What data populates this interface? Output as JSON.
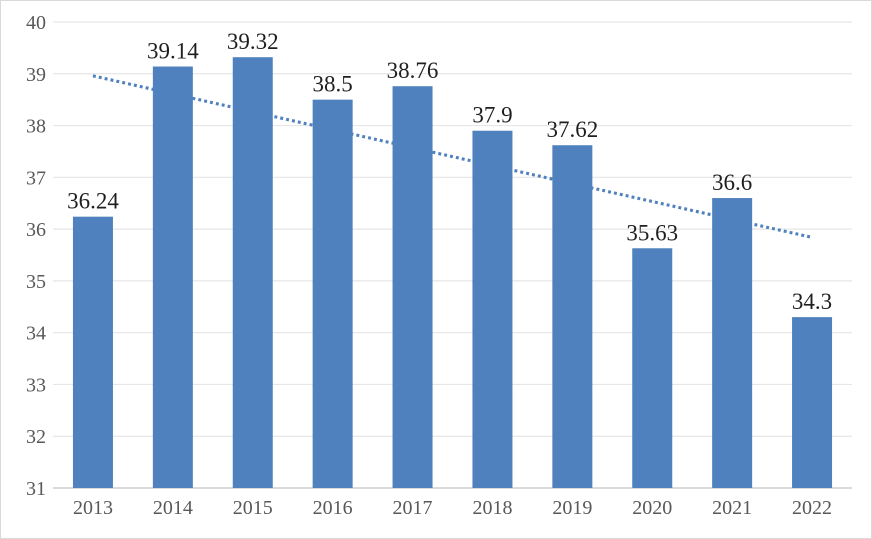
{
  "chart_data": {
    "type": "bar",
    "title": "",
    "xlabel": "",
    "ylabel": "",
    "categories": [
      "2013",
      "2014",
      "2015",
      "2016",
      "2017",
      "2018",
      "2019",
      "2020",
      "2021",
      "2022"
    ],
    "values": [
      36.24,
      39.14,
      39.32,
      38.5,
      38.76,
      37.9,
      37.62,
      35.63,
      36.6,
      34.3
    ],
    "data_labels": [
      "36.24",
      "39.14",
      "39.32",
      "38.5",
      "38.76",
      "37.9",
      "37.62",
      "35.63",
      "36.6",
      "34.3"
    ],
    "ylim": [
      31,
      40
    ],
    "yticks": [
      31,
      32,
      33,
      34,
      35,
      36,
      37,
      38,
      39,
      40
    ],
    "grid": true,
    "legend": "none",
    "bar_color": "#4e81bd",
    "gridline_color": "#e6e6e6",
    "axis_line_color": "#cfcfcf",
    "axis_text_color": "#595959",
    "data_label_color": "#1f1f1f",
    "trendline": {
      "type": "linear",
      "style": "dotted",
      "color": "#4e81bd",
      "start_value": 38.96,
      "end_value": 35.84
    }
  }
}
